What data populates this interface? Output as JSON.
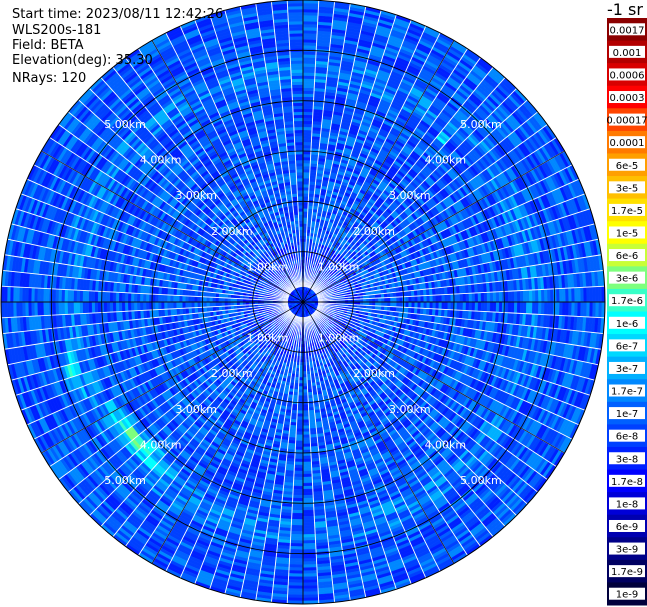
{
  "header": {
    "start_time": "Start time: 2023/08/11 12:42:26",
    "instrument": "WLS200s-181",
    "field": "Field: BETA",
    "elevation": "Elevation(deg): 35.30",
    "nrays": "NRays: 120"
  },
  "colorbar": {
    "unit": "-1 sr",
    "labels": [
      "0.0017",
      "0.001",
      "0.0006",
      "0.0003",
      "0.00017",
      "0.0001",
      "6e-5",
      "3e-5",
      "1.7e-5",
      "1e-5",
      "6e-6",
      "3e-6",
      "1.7e-6",
      "1e-6",
      "6e-7",
      "3e-7",
      "1.7e-7",
      "1e-7",
      "6e-8",
      "3e-8",
      "1.7e-8",
      "1e-8",
      "6e-9",
      "3e-9",
      "1.7e-9",
      "1e-9"
    ],
    "colors": [
      "#8b0000",
      "#b30000",
      "#d80000",
      "#ff0000",
      "#ff4500",
      "#ff7a00",
      "#ff9f00",
      "#ffbf00",
      "#ffe000",
      "#ffff00",
      "#c8ff37",
      "#7dff7d",
      "#37ffc8",
      "#00ffff",
      "#00d8ff",
      "#00b0ff",
      "#0088ff",
      "#0060ff",
      "#0040ff",
      "#0020ff",
      "#0000ff",
      "#0000d8",
      "#0000b0",
      "#000088",
      "#000060",
      "#00003c"
    ]
  },
  "chart_data": {
    "type": "heatmap",
    "projection": "polar (PPI)",
    "field": "BETA",
    "nrays": 120,
    "range_rings_km": [
      1.0,
      2.0,
      3.0,
      4.0,
      5.0
    ],
    "range_labels": [
      "1.00km",
      "2.00km",
      "3.00km",
      "4.00km",
      "5.00km"
    ],
    "max_range_km": 6.0,
    "color_scale": "log",
    "value_range": [
      1e-09,
      0.0017
    ],
    "background_level": "6e-8 to 1e-7",
    "features": [
      {
        "description": "high backscatter arc",
        "azimuth_deg_range": [
          215,
          245
        ],
        "range_km": [
          4.0,
          4.6
        ],
        "peak": "3e-6"
      },
      {
        "description": "high backscatter arc",
        "azimuth_deg_range": [
          245,
          260
        ],
        "range_km": [
          4.6,
          5.0
        ],
        "peak": "1.7e-6"
      },
      {
        "description": "enhanced patch",
        "azimuth_deg_range": [
          38,
          42
        ],
        "range_km": [
          4.1,
          4.4
        ],
        "peak": "1.7e-6"
      }
    ]
  }
}
